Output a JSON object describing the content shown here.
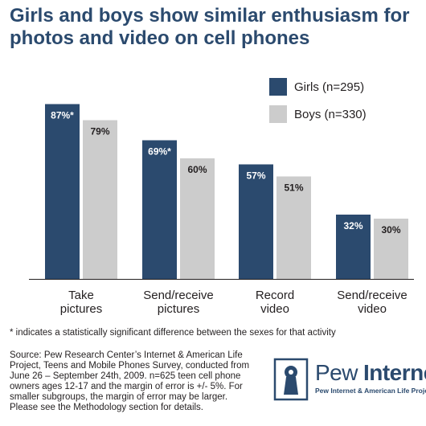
{
  "title_lines": [
    "Girls and boys show similar enthusiasm for",
    "photos and video on cell phones"
  ],
  "chart_data": {
    "type": "bar",
    "categories": [
      [
        "Take",
        "pictures"
      ],
      [
        "Send/receive",
        "pictures"
      ],
      [
        "Record",
        "video"
      ],
      [
        "Send/receive",
        "video"
      ]
    ],
    "series": [
      {
        "name": "Girls (n=295)",
        "values": [
          87,
          69,
          57,
          32
        ],
        "labels": [
          "87%*",
          "69%*",
          "57%",
          "32%"
        ],
        "color": "#2b4a6e"
      },
      {
        "name": "Boys (n=330)",
        "values": [
          79,
          60,
          51,
          30
        ],
        "labels": [
          "79%",
          "60%",
          "51%",
          "30%"
        ],
        "color": "#cccccc"
      }
    ],
    "ylim": [
      0,
      100
    ],
    "grid": false,
    "legend": "top-right"
  },
  "footnote": "* indicates a statistically significant difference between the sexes for that activity",
  "source_lines": [
    "Source: Pew Research Center’s Internet & American Life",
    "Project, Teens and Mobile Phones Survey, conducted from",
    "June 26 – September 24th, 2009. n=625 teen cell phone",
    "owners ages 12-17 and the margin of error is +/- 5%. For",
    "smaller subgroups, the margin of error may be larger.",
    "Please see the Methodology section for details."
  ],
  "logo": {
    "word1": "Pew",
    "word2": "Internet",
    "tagline": "Pew Internet & American Life Project"
  },
  "colors": {
    "title": "#2b4a6e",
    "girls": "#2b4a6e",
    "boys": "#cccccc"
  }
}
